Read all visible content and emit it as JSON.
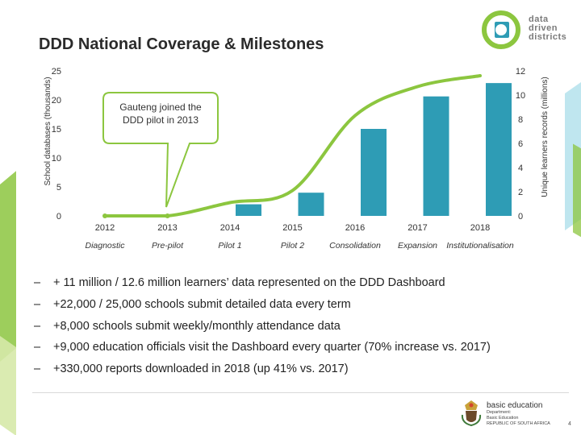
{
  "slide": {
    "title": "DDD National Coverage & Milestones",
    "page_number": "4"
  },
  "brand": {
    "ddd_logo_lines": [
      "data",
      "driven",
      "districts"
    ],
    "be_logo_title": "basic education",
    "be_logo_lines": [
      "Department:",
      "Basic Education",
      "REPUBLIC OF SOUTH AFRICA"
    ],
    "colors": {
      "bar": "#2e9cb5",
      "line": "#8cc63f",
      "callout_border": "#8cc63f"
    }
  },
  "chart_data": {
    "type": "bar",
    "title": "",
    "categories": [
      "2012",
      "2013",
      "2014",
      "2015",
      "2016",
      "2017",
      "2018"
    ],
    "stages": [
      "Diagnostic",
      "Pre-pilot",
      "Pilot 1",
      "Pilot 2",
      "Consolidation",
      "Expansion",
      "Institutionalisation"
    ],
    "ylabel": "School databases (thousands)",
    "ylim": [
      0,
      25
    ],
    "yticks": [
      0,
      5,
      10,
      15,
      20,
      25
    ],
    "y2label": "Unique learners records (millions)",
    "y2lim": [
      0,
      12
    ],
    "y2ticks": [
      0,
      2,
      4,
      6,
      8,
      10,
      12
    ],
    "series": [
      {
        "type": "bar",
        "axis": "left",
        "values": [
          0,
          0,
          2,
          4,
          15,
          20.6,
          22.9
        ]
      },
      {
        "type": "line",
        "axis": "right",
        "values": [
          0,
          0,
          1.1,
          2.1,
          8.3,
          10.7,
          11.6
        ]
      }
    ],
    "annotation": {
      "text_lines": [
        "Gauteng joined the",
        "DDD pilot in 2013"
      ],
      "points_to": "2013"
    },
    "grid": false,
    "legend": "none"
  },
  "bullets": [
    "+ 11 million / 12.6 million learners’ data represented on the DDD Dashboard",
    "+22,000 / 25,000 schools submit detailed data every term",
    "+8,000 schools submit weekly/monthly attendance data",
    "+9,000 education officials visit the Dashboard every quarter (70% increase vs. 2017)",
    "+330,000 reports downloaded in 2018 (up 41% vs. 2017)"
  ]
}
